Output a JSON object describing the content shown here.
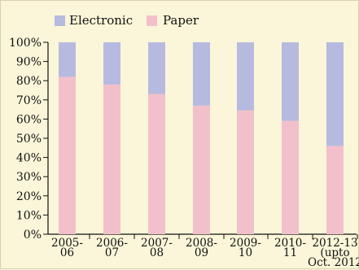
{
  "chart_data": {
    "type": "bar",
    "stacked": true,
    "percent": true,
    "categories": [
      [
        "2005-",
        "06"
      ],
      [
        "2006-",
        "07"
      ],
      [
        "2007-",
        "08"
      ],
      [
        "2008-",
        "09"
      ],
      [
        "2009-",
        "10"
      ],
      [
        "2010-",
        "11"
      ],
      [
        "2012-13",
        "(upto",
        "Oct. 2012"
      ]
    ],
    "series": [
      {
        "name": "Paper",
        "values": [
          82,
          78,
          73,
          67,
          64.5,
          59,
          46
        ],
        "color": "#f2c0cb"
      },
      {
        "name": "Electronic",
        "values": [
          18,
          22,
          27,
          33,
          35.5,
          41,
          54
        ],
        "color": "#b7badf"
      }
    ],
    "ylim": [
      0,
      100
    ],
    "yticks": [
      "0%",
      "10%",
      "20%",
      "30%",
      "40%",
      "50%",
      "60%",
      "70%",
      "80%",
      "90%",
      "100%"
    ],
    "legend": {
      "placement": "top-left",
      "items": [
        "Electronic",
        "Paper"
      ]
    },
    "grid": false,
    "title": "",
    "xlabel": "",
    "ylabel": ""
  }
}
